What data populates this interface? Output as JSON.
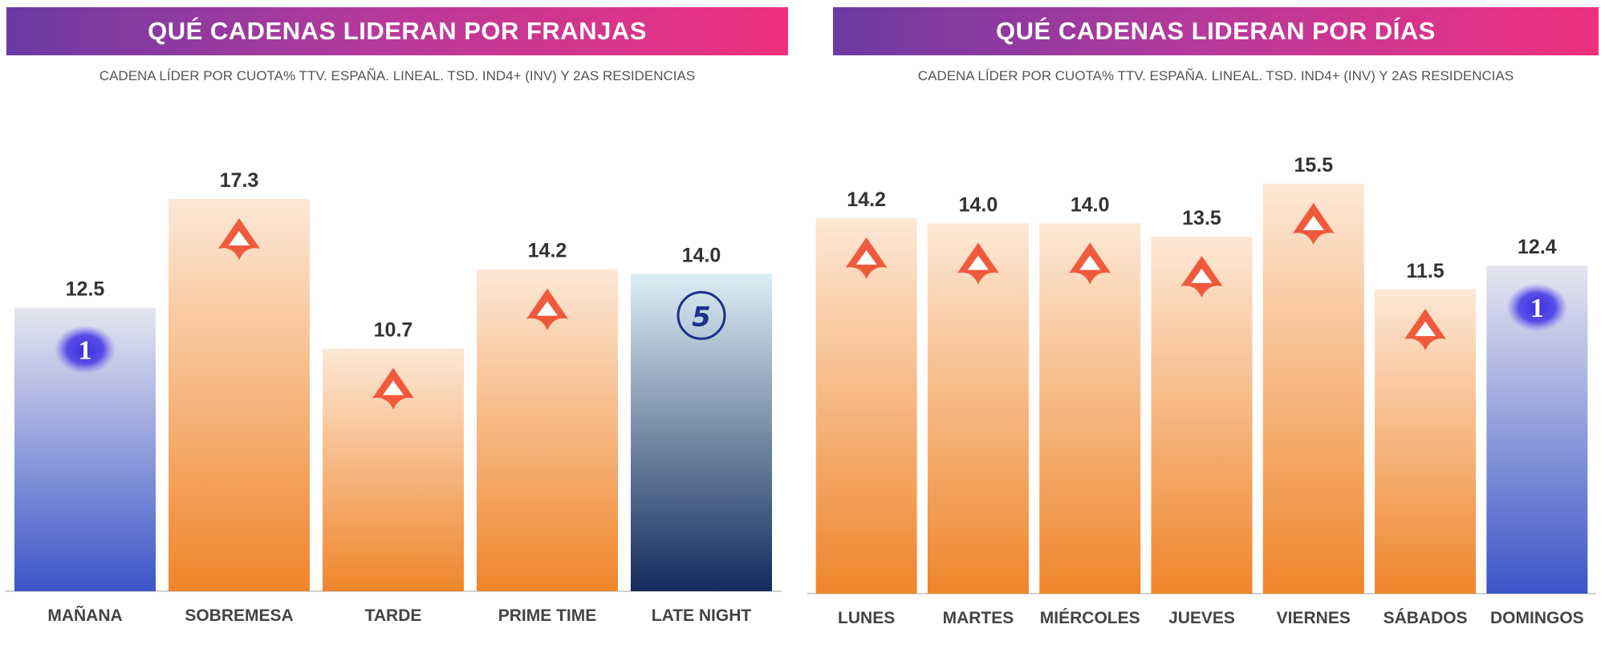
{
  "left": {
    "title": "QUÉ CADENAS LIDERAN POR FRANJAS",
    "subtitle": "CADENA LÍDER POR CUOTA% TTV. ESPAÑA. LINEAL. TSD. IND4+ (INV) Y 2AS RESIDENCIAS"
  },
  "right": {
    "title": "QUÉ CADENAS LIDERAN POR DÍAS",
    "subtitle": "CADENA LÍDER POR CUOTA% TTV. ESPAÑA. LINEAL. TSD. IND4+ (INV) Y 2AS RESIDENCIAS"
  },
  "colors": {
    "antena3": "#f05a3c",
    "antena3_bar_bottom": "#f0852a",
    "antena3_bar_top": "#fde8d6",
    "la1_bar_bottom": "#3b55c8",
    "la1_bar_top": "#e6e6f0",
    "telecinco_bar_bottom": "#142a5c",
    "telecinco_bar_top": "#dceef5",
    "banner_start": "#6b3aa3",
    "banner_end": "#f0307f"
  },
  "chart_data": [
    {
      "type": "bar",
      "categories": [
        "MAÑANA",
        "SOBREMESA",
        "TARDE",
        "PRIME TIME",
        "LATE NIGHT"
      ],
      "values": [
        12.5,
        17.3,
        10.7,
        14.2,
        14.0
      ],
      "labels": [
        "12.5",
        "17.3",
        "10.7",
        "14.2",
        "14.0"
      ],
      "leaders": [
        "la1-logo-icon",
        "antena3-logo-icon",
        "antena3-logo-icon",
        "antena3-logo-icon",
        "telecinco-logo-icon"
      ],
      "ylim": [
        0,
        17.3
      ]
    },
    {
      "type": "bar",
      "categories": [
        "LUNES",
        "MARTES",
        "MIÉRCOLES",
        "JUEVES",
        "VIERNES",
        "SÁBADOS",
        "DOMINGOS"
      ],
      "values": [
        14.2,
        14.0,
        14.0,
        13.5,
        15.5,
        11.5,
        12.4
      ],
      "labels": [
        "14.2",
        "14.0",
        "14.0",
        "13.5",
        "15.5",
        "11.5",
        "12.4"
      ],
      "leaders": [
        "antena3-logo-icon",
        "antena3-logo-icon",
        "antena3-logo-icon",
        "antena3-logo-icon",
        "antena3-logo-icon",
        "antena3-logo-icon",
        "la1-logo-icon"
      ],
      "ylim": [
        0,
        15.5
      ]
    }
  ]
}
